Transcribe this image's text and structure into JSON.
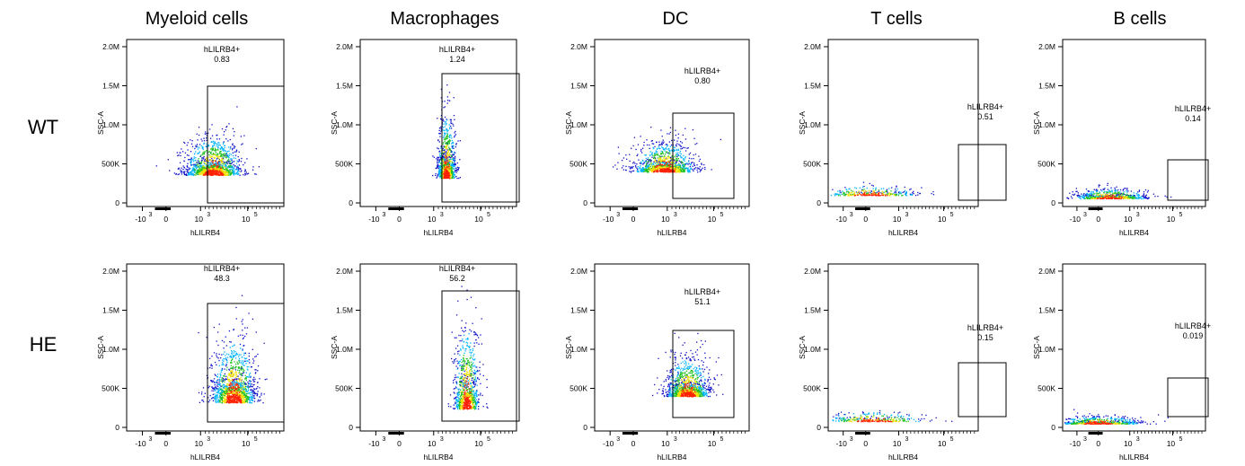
{
  "chart_data": {
    "type": "scatter",
    "subtype": "flow-cytometry-density",
    "columns": [
      "Myeloid cells",
      "Macrophages",
      "DC",
      "T cells",
      "B cells"
    ],
    "rows": [
      "WT",
      "HE"
    ],
    "xlabel": "hLILRB4",
    "ylabel": "SSC-A",
    "x_ticks": [
      {
        "sign": "-",
        "exp": "3"
      },
      {
        "sign": "",
        "exp": ""
      },
      {
        "sign": "",
        "exp": "3"
      },
      {
        "sign": "",
        "exp": "5"
      }
    ],
    "y_ticks": [
      "0",
      "500K",
      "1.0M",
      "1.5M",
      "2.0M"
    ],
    "ylim": [
      0,
      2000000
    ],
    "xlim_biex": [
      -3,
      6
    ],
    "gate_name": "hLILRB4+",
    "gates": [
      {
        "row": "WT",
        "col": "Myeloid cells",
        "value": "0.83"
      },
      {
        "row": "WT",
        "col": "Macrophages",
        "value": "1.24"
      },
      {
        "row": "WT",
        "col": "DC",
        "value": "0.80"
      },
      {
        "row": "WT",
        "col": "T cells",
        "value": "0.51"
      },
      {
        "row": "WT",
        "col": "B cells",
        "value": "0.14"
      },
      {
        "row": "HE",
        "col": "Myeloid cells",
        "value": "48.3"
      },
      {
        "row": "HE",
        "col": "Macrophages",
        "value": "56.2"
      },
      {
        "row": "HE",
        "col": "DC",
        "value": "51.1"
      },
      {
        "row": "HE",
        "col": "T cells",
        "value": "0.15"
      },
      {
        "row": "HE",
        "col": "B cells",
        "value": "0.019"
      }
    ],
    "colors": {
      "low": "#1010c8",
      "mid_low": "#00b4ff",
      "mid": "#20c020",
      "mid_high": "#f0e000",
      "high": "#ff2000"
    }
  }
}
